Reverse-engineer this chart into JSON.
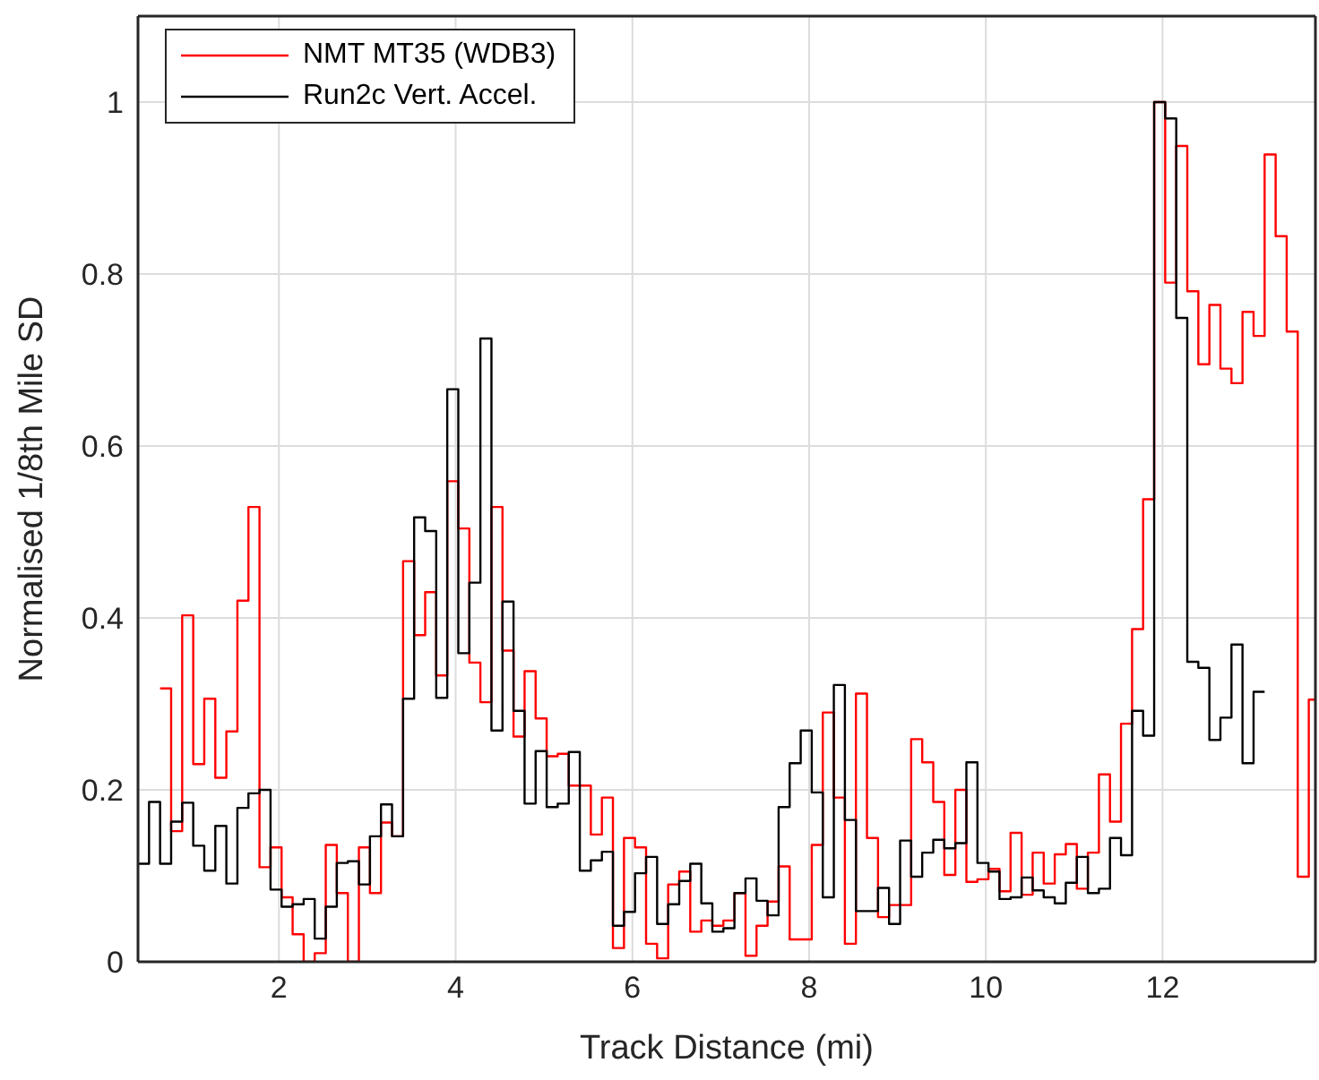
{
  "chart_data": {
    "type": "step",
    "xlabel": "Track Distance (mi)",
    "ylabel": "Normalised 1/8th Mile SD",
    "xlim": [
      0.405,
      13.73
    ],
    "ylim": [
      0,
      1.1
    ],
    "xticks": [
      2,
      4,
      6,
      8,
      10,
      12
    ],
    "yticks": [
      0,
      0.2,
      0.4,
      0.6,
      0.8,
      1
    ],
    "grid": true,
    "legend": "top left",
    "line_style": "solid",
    "marker": "none",
    "series": [
      {
        "name": "NMT MT35 (WDB3)",
        "color": "#ff0000",
        "x": [
          0.655,
          0.78,
          0.905,
          1.03,
          1.155,
          1.28,
          1.405,
          1.53,
          1.655,
          1.78,
          1.905,
          2.03,
          2.155,
          2.28,
          2.405,
          2.53,
          2.655,
          2.78,
          2.905,
          3.03,
          3.155,
          3.28,
          3.405,
          3.53,
          3.655,
          3.78,
          3.905,
          4.03,
          4.155,
          4.28,
          4.405,
          4.53,
          4.655,
          4.78,
          4.905,
          5.03,
          5.155,
          5.28,
          5.405,
          5.53,
          5.655,
          5.78,
          5.905,
          6.03,
          6.155,
          6.28,
          6.405,
          6.53,
          6.655,
          6.78,
          6.905,
          7.03,
          7.155,
          7.28,
          7.405,
          7.53,
          7.655,
          7.78,
          7.905,
          8.03,
          8.155,
          8.28,
          8.405,
          8.53,
          8.655,
          8.78,
          8.905,
          9.03,
          9.155,
          9.28,
          9.405,
          9.53,
          9.655,
          9.78,
          9.905,
          10.03,
          10.155,
          10.28,
          10.405,
          10.53,
          10.655,
          10.78,
          10.905,
          11.03,
          11.155,
          11.28,
          11.405,
          11.53,
          11.655,
          11.78,
          11.905,
          12.03,
          12.155,
          12.28,
          12.405,
          12.53,
          12.655,
          12.78,
          12.905,
          13.03,
          13.155,
          13.28,
          13.405,
          13.53,
          13.655,
          13.73
        ],
        "values": [
          0.318,
          0.152,
          0.403,
          0.23,
          0.306,
          0.214,
          0.268,
          0.42,
          0.529,
          0.11,
          0.133,
          0.075,
          0.032,
          0,
          0.01,
          0.136,
          0.08,
          0,
          0.133,
          0.08,
          0.162,
          0.146,
          0.466,
          0.38,
          0.43,
          0.333,
          0.559,
          0.504,
          0.348,
          0.302,
          0.529,
          0.362,
          0.262,
          0.338,
          0.283,
          0.239,
          0.242,
          0.205,
          0.205,
          0.148,
          0.191,
          0.016,
          0.144,
          0.133,
          0.021,
          0.004,
          0.09,
          0.105,
          0.035,
          0.048,
          0.042,
          0.048,
          0.08,
          0.007,
          0.042,
          0.07,
          0.111,
          0.026,
          0.026,
          0.136,
          0.29,
          0.191,
          0.021,
          0.312,
          0.144,
          0.052,
          0.066,
          0.066,
          0.259,
          0.232,
          0.186,
          0.101,
          0.2,
          0.093,
          0.096,
          0.108,
          0.082,
          0.15,
          0.078,
          0.127,
          0.091,
          0.125,
          0.137,
          0.085,
          0.127,
          0.218,
          0.163,
          0.277,
          0.387,
          0.538,
          1.0,
          0.79,
          0.949,
          0.78,
          0.695,
          0.764,
          0.69,
          0.673,
          0.756,
          0.728,
          0.939,
          0.844,
          0.733,
          0.099,
          0.305,
          0.305
        ]
      },
      {
        "name": "Run2c Vert. Accel.",
        "color": "#000000",
        "x": [
          0.405,
          0.53,
          0.655,
          0.78,
          0.905,
          1.03,
          1.155,
          1.28,
          1.405,
          1.53,
          1.655,
          1.78,
          1.905,
          2.03,
          2.155,
          2.28,
          2.405,
          2.53,
          2.655,
          2.78,
          2.905,
          3.03,
          3.155,
          3.28,
          3.405,
          3.53,
          3.655,
          3.78,
          3.905,
          4.03,
          4.155,
          4.28,
          4.405,
          4.53,
          4.655,
          4.78,
          4.905,
          5.03,
          5.155,
          5.28,
          5.405,
          5.53,
          5.655,
          5.78,
          5.905,
          6.03,
          6.155,
          6.28,
          6.405,
          6.53,
          6.655,
          6.78,
          6.905,
          7.03,
          7.155,
          7.28,
          7.405,
          7.53,
          7.655,
          7.78,
          7.905,
          8.03,
          8.155,
          8.28,
          8.405,
          8.53,
          8.655,
          8.78,
          8.905,
          9.03,
          9.155,
          9.28,
          9.405,
          9.53,
          9.655,
          9.78,
          9.905,
          10.03,
          10.155,
          10.28,
          10.405,
          10.53,
          10.655,
          10.78,
          10.905,
          11.03,
          11.155,
          11.28,
          11.405,
          11.53,
          11.655,
          11.78,
          11.905,
          12.03,
          12.155,
          12.28,
          12.405,
          12.53,
          12.655,
          12.78,
          12.905,
          13.03,
          13.155
        ],
        "values": [
          0.114,
          0.186,
          0.114,
          0.163,
          0.185,
          0.135,
          0.106,
          0.158,
          0.091,
          0.179,
          0.196,
          0.2,
          0.084,
          0.064,
          0.067,
          0.073,
          0.027,
          0.064,
          0.115,
          0.117,
          0.09,
          0.146,
          0.183,
          0.146,
          0.306,
          0.517,
          0.501,
          0.307,
          0.666,
          0.359,
          0.441,
          0.725,
          0.269,
          0.419,
          0.292,
          0.184,
          0.245,
          0.18,
          0.184,
          0.244,
          0.106,
          0.118,
          0.128,
          0.042,
          0.058,
          0.103,
          0.122,
          0.044,
          0.067,
          0.094,
          0.114,
          0.068,
          0.035,
          0.039,
          0.08,
          0.097,
          0.071,
          0.054,
          0.18,
          0.231,
          0.269,
          0.197,
          0.075,
          0.322,
          0.165,
          0.059,
          0.059,
          0.086,
          0.044,
          0.141,
          0.099,
          0.127,
          0.142,
          0.132,
          0.138,
          0.232,
          0.115,
          0.105,
          0.073,
          0.075,
          0.098,
          0.083,
          0.075,
          0.068,
          0.092,
          0.122,
          0.08,
          0.085,
          0.144,
          0.124,
          0.292,
          0.263,
          1.0,
          0.981,
          0.749,
          0.349,
          0.342,
          0.258,
          0.284,
          0.369,
          0.231,
          0.314,
          0.314
        ]
      }
    ]
  }
}
